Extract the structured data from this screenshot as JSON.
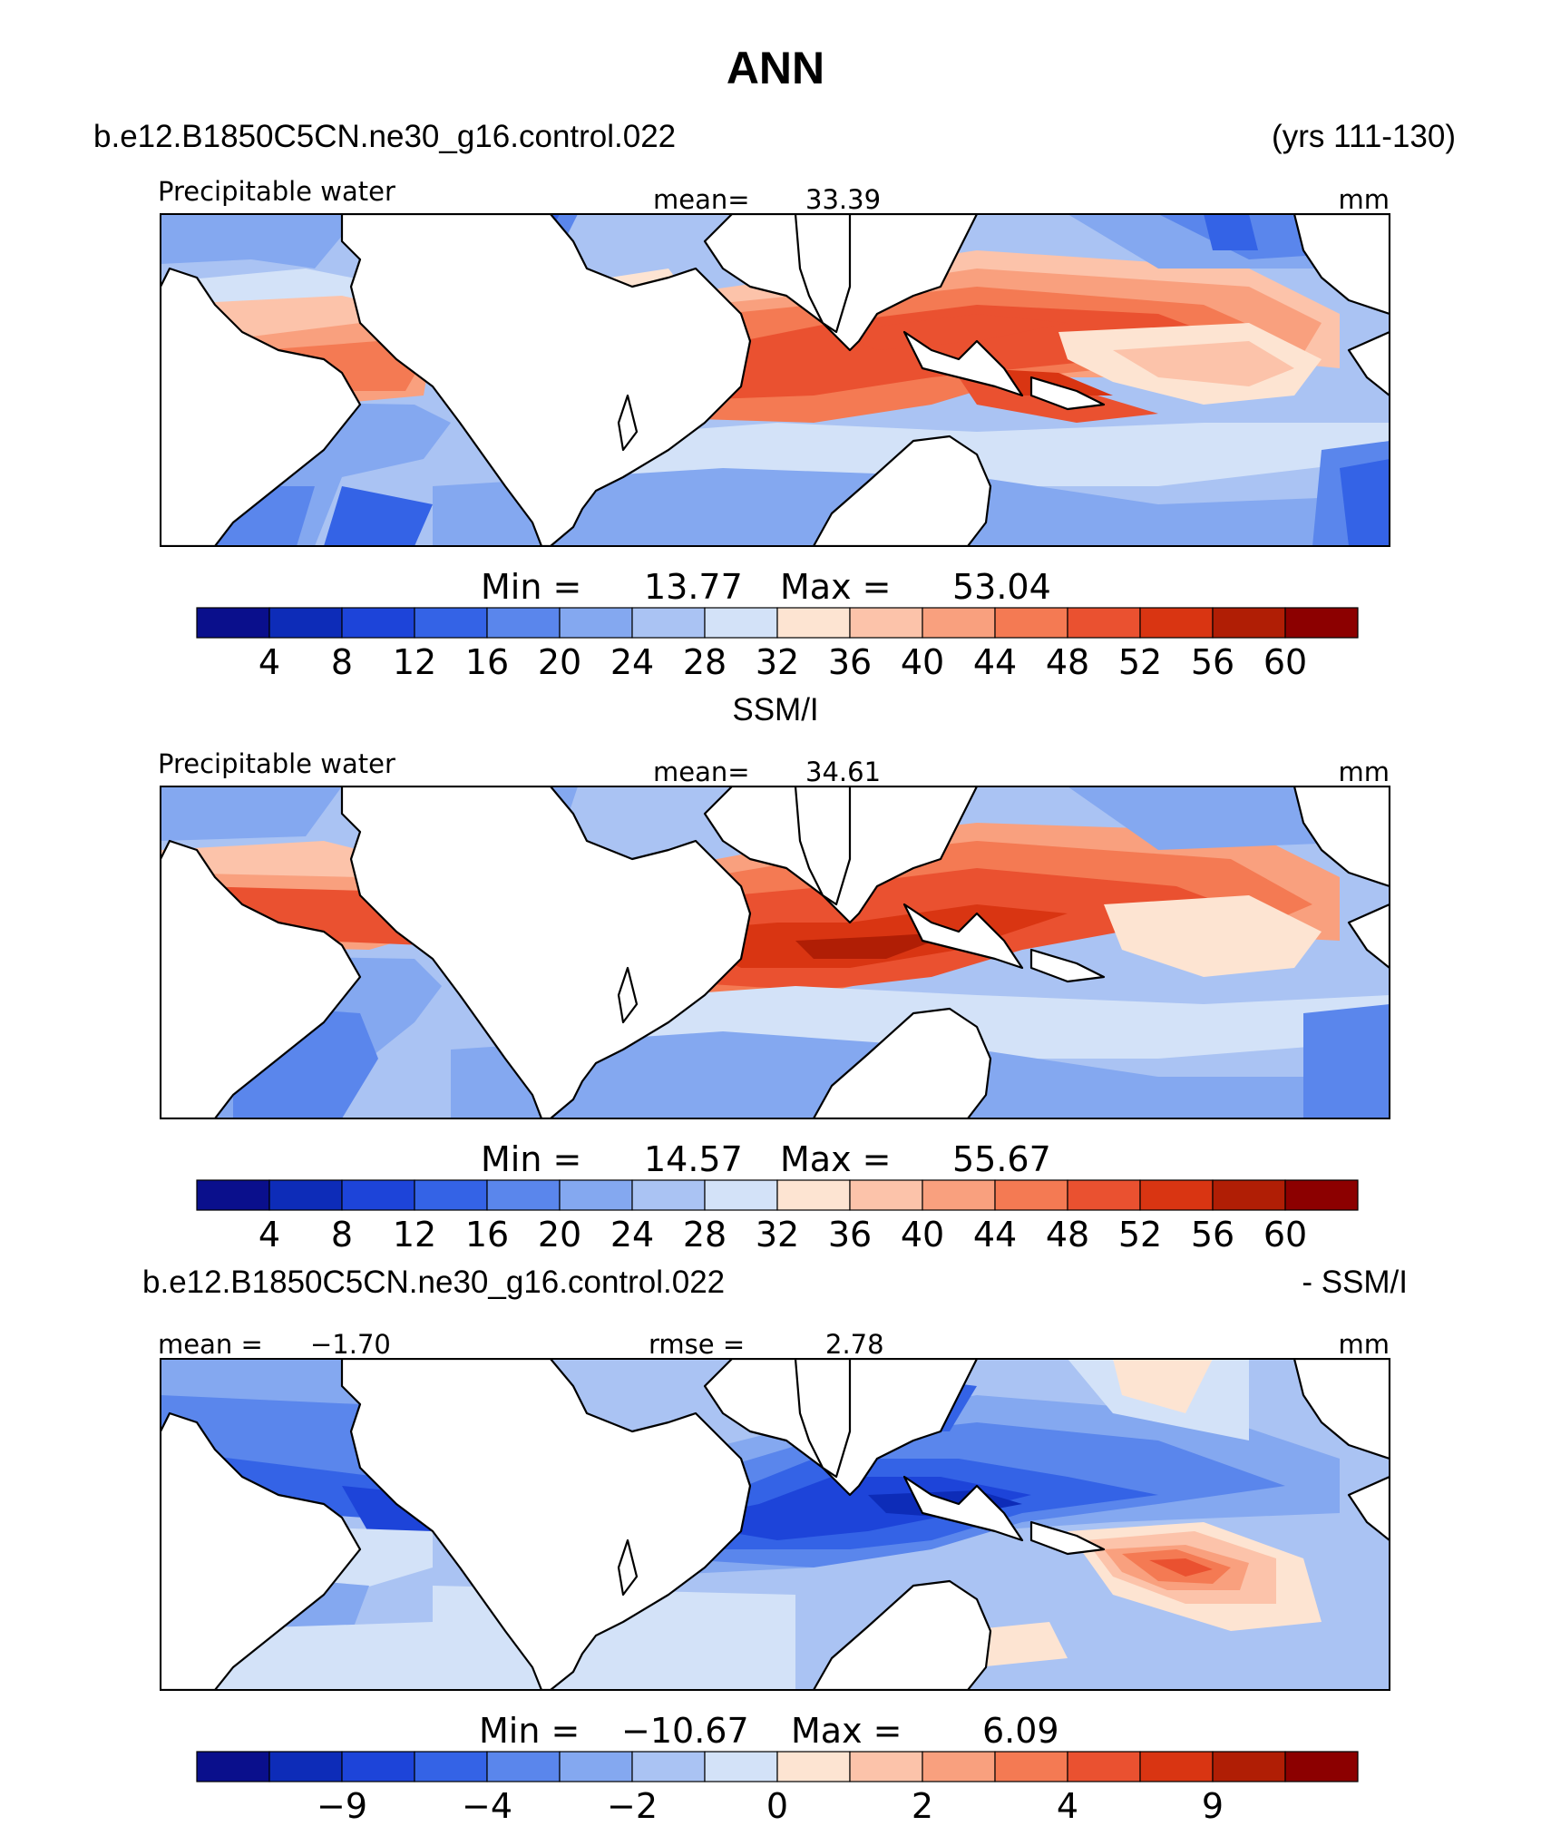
{
  "figure": {
    "title": "ANN",
    "top_case": "b.e12.B1850C5CN.ne30_g16.control.022",
    "top_years": "(yrs 111-130)",
    "obs_name": "SSM/I",
    "diff_case": "b.e12.B1850C5CN.ne30_g16.control.022",
    "diff_suffix": "- SSM/I"
  },
  "colors": {
    "land": "#ffffff",
    "coast": "#000000",
    "mid_palette": [
      "#0a0f8c",
      "#0d2cb8",
      "#1d44d9",
      "#3463e6",
      "#5a86ec",
      "#84a8f0",
      "#aac3f3",
      "#d3e2f8",
      "#fde4d2",
      "#fcc3aa",
      "#f9a07e",
      "#f47a53",
      "#ea5130",
      "#d93512",
      "#b01e05",
      "#8c0000"
    ]
  },
  "chart_data": [
    {
      "type": "heatmap",
      "name": "model",
      "field_label": "Precipitable water",
      "mean_label": "mean=",
      "mean_value": "33.39",
      "units": "mm",
      "min_label": "Min =",
      "min_value": "13.77",
      "max_label": "Max =",
      "max_value": "53.04",
      "colorbar_labels": [
        "4",
        "8",
        "12",
        "16",
        "20",
        "24",
        "28",
        "32",
        "36",
        "40",
        "44",
        "48",
        "52",
        "56",
        "60"
      ],
      "colorbar_levels": [
        4,
        8,
        12,
        16,
        20,
        24,
        28,
        32,
        36,
        40,
        44,
        48,
        52,
        56,
        60
      ],
      "lon_range": [
        0,
        360
      ],
      "lat_range": [
        -40,
        40
      ]
    },
    {
      "type": "heatmap",
      "name": "obs",
      "field_label": "Precipitable water",
      "mean_label": "mean=",
      "mean_value": "34.61",
      "units": "mm",
      "min_label": "Min =",
      "min_value": "14.57",
      "max_label": "Max =",
      "max_value": "55.67",
      "colorbar_labels": [
        "4",
        "8",
        "12",
        "16",
        "20",
        "24",
        "28",
        "32",
        "36",
        "40",
        "44",
        "48",
        "52",
        "56",
        "60"
      ],
      "colorbar_levels": [
        4,
        8,
        12,
        16,
        20,
        24,
        28,
        32,
        36,
        40,
        44,
        48,
        52,
        56,
        60
      ],
      "lon_range": [
        0,
        360
      ],
      "lat_range": [
        -40,
        40
      ]
    },
    {
      "type": "heatmap",
      "name": "difference",
      "left_label": "mean =",
      "left_value": "−1.70",
      "rmse_label": "rmse =",
      "rmse_value": "2.78",
      "units": "mm",
      "min_label": "Min =",
      "min_value": "−10.67",
      "max_label": "Max =",
      "max_value": "6.09",
      "colorbar_labels": [
        "−9",
        "−4",
        "−2",
        "0",
        "2",
        "4",
        "9"
      ],
      "colorbar_label_boundaries": [
        2,
        4,
        6,
        8,
        10,
        12,
        14
      ],
      "lon_range": [
        0,
        360
      ],
      "lat_range": [
        -40,
        40
      ]
    }
  ]
}
